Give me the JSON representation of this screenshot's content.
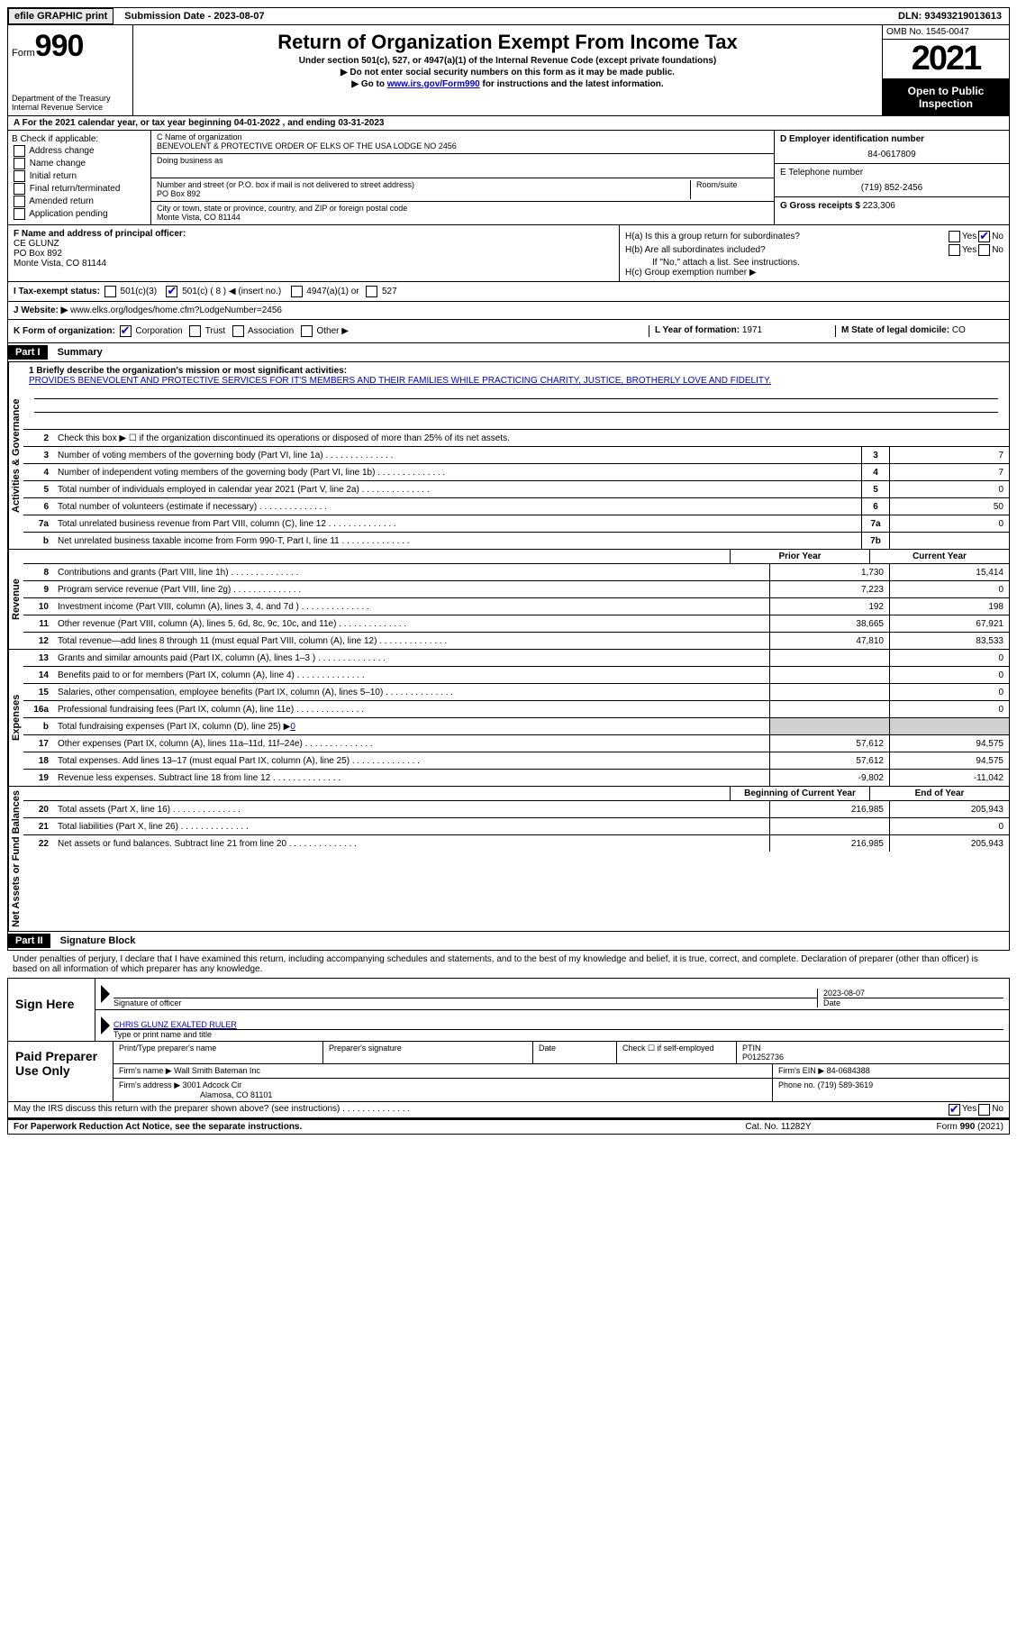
{
  "topbar": {
    "efile": "efile GRAPHIC print",
    "subdate_label": "Submission Date - 2023-08-07",
    "dln": "DLN: 93493219013613"
  },
  "header": {
    "form_word": "Form",
    "form_num": "990",
    "dept": "Department of the Treasury",
    "irs": "Internal Revenue Service",
    "title": "Return of Organization Exempt From Income Tax",
    "sub1": "Under section 501(c), 527, or 4947(a)(1) of the Internal Revenue Code (except private foundations)",
    "sub2": "▶ Do not enter social security numbers on this form as it may be made public.",
    "sub3_pre": "▶ Go to ",
    "sub3_link": "www.irs.gov/Form990",
    "sub3_post": " for instructions and the latest information.",
    "omb": "OMB No. 1545-0047",
    "year": "2021",
    "open": "Open to Public Inspection"
  },
  "row_a": "A For the 2021 calendar year, or tax year beginning 04-01-2022   , and ending 03-31-2023",
  "col_b": {
    "header": "B Check if applicable:",
    "items": [
      "Address change",
      "Name change",
      "Initial return",
      "Final return/terminated",
      "Amended return",
      "Application pending"
    ]
  },
  "col_c": {
    "name_label": "C Name of organization",
    "name": "BENEVOLENT & PROTECTIVE ORDER OF ELKS OF THE USA LODGE NO 2456",
    "dba_label": "Doing business as",
    "addr_label": "Number and street (or P.O. box if mail is not delivered to street address)",
    "room_label": "Room/suite",
    "addr": "PO Box 892",
    "city_label": "City or town, state or province, country, and ZIP or foreign postal code",
    "city": "Monte Vista, CO  81144"
  },
  "col_d": {
    "ein_label": "D Employer identification number",
    "ein": "84-0617809",
    "tel_label": "E Telephone number",
    "tel": "(719) 852-2456",
    "gross_label": "G Gross receipts $",
    "gross": "223,306"
  },
  "row_f": {
    "label": "F Name and address of principal officer:",
    "name": "CE GLUNZ",
    "addr1": "PO Box 892",
    "addr2": "Monte Vista, CO  81144"
  },
  "row_h": {
    "ha": "H(a)  Is this a group return for subordinates?",
    "hb": "H(b)  Are all subordinates included?",
    "hb_note": "If \"No,\" attach a list. See instructions.",
    "hc": "H(c)  Group exemption number ▶"
  },
  "row_i": {
    "label": "I  Tax-exempt status:",
    "c3": "501(c)(3)",
    "c": "501(c) ( 8 ) ◀ (insert no.)",
    "a1": "4947(a)(1) or",
    "527": "527"
  },
  "row_j": {
    "label": "J  Website: ▶",
    "url": "www.elks.org/lodges/home.cfm?LodgeNumber=2456"
  },
  "row_k": {
    "label": "K Form of organization:",
    "corp": "Corporation",
    "trust": "Trust",
    "assoc": "Association",
    "other": "Other ▶",
    "l_label": "L Year of formation: ",
    "l_val": "1971",
    "m_label": "M State of legal domicile: ",
    "m_val": "CO"
  },
  "part1": {
    "header": "Part I",
    "title": "Summary"
  },
  "briefly": {
    "label": "1  Briefly describe the organization's mission or most significant activities:",
    "text": "PROVIDES BENEVOLENT AND PROTECTIVE SERVICES FOR IT'S MEMBERS AND THEIR FAMILIES WHILE PRACTICING CHARITY, JUSTICE, BROTHERLY LOVE AND FIDELITY."
  },
  "line2": "Check this box ▶ ☐ if the organization discontinued its operations or disposed of more than 25% of its net assets.",
  "activities": [
    {
      "n": "3",
      "d": "Number of voting members of the governing body (Part VI, line 1a)",
      "b": "3",
      "v": "7"
    },
    {
      "n": "4",
      "d": "Number of independent voting members of the governing body (Part VI, line 1b)",
      "b": "4",
      "v": "7"
    },
    {
      "n": "5",
      "d": "Total number of individuals employed in calendar year 2021 (Part V, line 2a)",
      "b": "5",
      "v": "0"
    },
    {
      "n": "6",
      "d": "Total number of volunteers (estimate if necessary)",
      "b": "6",
      "v": "50"
    },
    {
      "n": "7a",
      "d": "Total unrelated business revenue from Part VIII, column (C), line 12",
      "b": "7a",
      "v": "0"
    },
    {
      "n": "b",
      "d": "Net unrelated business taxable income from Form 990-T, Part I, line 11",
      "b": "7b",
      "v": ""
    }
  ],
  "col_headers": {
    "prior": "Prior Year",
    "current": "Current Year"
  },
  "revenue": [
    {
      "n": "8",
      "d": "Contributions and grants (Part VIII, line 1h)",
      "p": "1,730",
      "c": "15,414"
    },
    {
      "n": "9",
      "d": "Program service revenue (Part VIII, line 2g)",
      "p": "7,223",
      "c": "0"
    },
    {
      "n": "10",
      "d": "Investment income (Part VIII, column (A), lines 3, 4, and 7d )",
      "p": "192",
      "c": "198"
    },
    {
      "n": "11",
      "d": "Other revenue (Part VIII, column (A), lines 5, 6d, 8c, 9c, 10c, and 11e)",
      "p": "38,665",
      "c": "67,921"
    },
    {
      "n": "12",
      "d": "Total revenue—add lines 8 through 11 (must equal Part VIII, column (A), line 12)",
      "p": "47,810",
      "c": "83,533"
    }
  ],
  "expenses": [
    {
      "n": "13",
      "d": "Grants and similar amounts paid (Part IX, column (A), lines 1–3 )",
      "p": "",
      "c": "0"
    },
    {
      "n": "14",
      "d": "Benefits paid to or for members (Part IX, column (A), line 4)",
      "p": "",
      "c": "0"
    },
    {
      "n": "15",
      "d": "Salaries, other compensation, employee benefits (Part IX, column (A), lines 5–10)",
      "p": "",
      "c": "0"
    },
    {
      "n": "16a",
      "d": "Professional fundraising fees (Part IX, column (A), line 11e)",
      "p": "",
      "c": "0"
    },
    {
      "n": "b",
      "d": "Total fundraising expenses (Part IX, column (D), line 25) ▶",
      "fund": "0",
      "grey": true
    },
    {
      "n": "17",
      "d": "Other expenses (Part IX, column (A), lines 11a–11d, 11f–24e)",
      "p": "57,612",
      "c": "94,575"
    },
    {
      "n": "18",
      "d": "Total expenses. Add lines 13–17 (must equal Part IX, column (A), line 25)",
      "p": "57,612",
      "c": "94,575"
    },
    {
      "n": "19",
      "d": "Revenue less expenses. Subtract line 18 from line 12",
      "p": "-9,802",
      "c": "-11,042"
    }
  ],
  "net_headers": {
    "begin": "Beginning of Current Year",
    "end": "End of Year"
  },
  "netassets": [
    {
      "n": "20",
      "d": "Total assets (Part X, line 16)",
      "p": "216,985",
      "c": "205,943"
    },
    {
      "n": "21",
      "d": "Total liabilities (Part X, line 26)",
      "p": "",
      "c": "0"
    },
    {
      "n": "22",
      "d": "Net assets or fund balances. Subtract line 21 from line 20",
      "p": "216,985",
      "c": "205,943"
    }
  ],
  "side_labels": {
    "activities": "Activities & Governance",
    "revenue": "Revenue",
    "expenses": "Expenses",
    "net": "Net Assets or Fund Balances"
  },
  "part2": {
    "header": "Part II",
    "title": "Signature Block",
    "penalty": "Under penalties of perjury, I declare that I have examined this return, including accompanying schedules and statements, and to the best of my knowledge and belief, it is true, correct, and complete. Declaration of preparer (other than officer) is based on all information of which preparer has any knowledge."
  },
  "sign": {
    "label": "Sign Here",
    "sig_label": "Signature of officer",
    "date_label": "Date",
    "date": "2023-08-07",
    "name": "CHRIS GLUNZ  EXALTED RULER",
    "name_label": "Type or print name and title"
  },
  "paid": {
    "label": "Paid Preparer Use Only",
    "col1": "Print/Type preparer's name",
    "col2": "Preparer's signature",
    "col3": "Date",
    "col4": "Check ☐ if self-employed",
    "col5_label": "PTIN",
    "col5": "P01252736",
    "firm_label": "Firm's name    ▶",
    "firm": "Wall Smith Bateman Inc",
    "firm_ein_label": "Firm's EIN ▶",
    "firm_ein": "84-0684388",
    "addr_label": "Firm's address ▶",
    "addr1": "3001 Adcock Cir",
    "addr2": "Alamosa, CO  81101",
    "phone_label": "Phone no.",
    "phone": "(719) 589-3619"
  },
  "discuss": "May the IRS discuss this return with the preparer shown above? (see instructions)",
  "footer": {
    "left": "For Paperwork Reduction Act Notice, see the separate instructions.",
    "mid": "Cat. No. 11282Y",
    "right": "Form 990 (2021)"
  }
}
